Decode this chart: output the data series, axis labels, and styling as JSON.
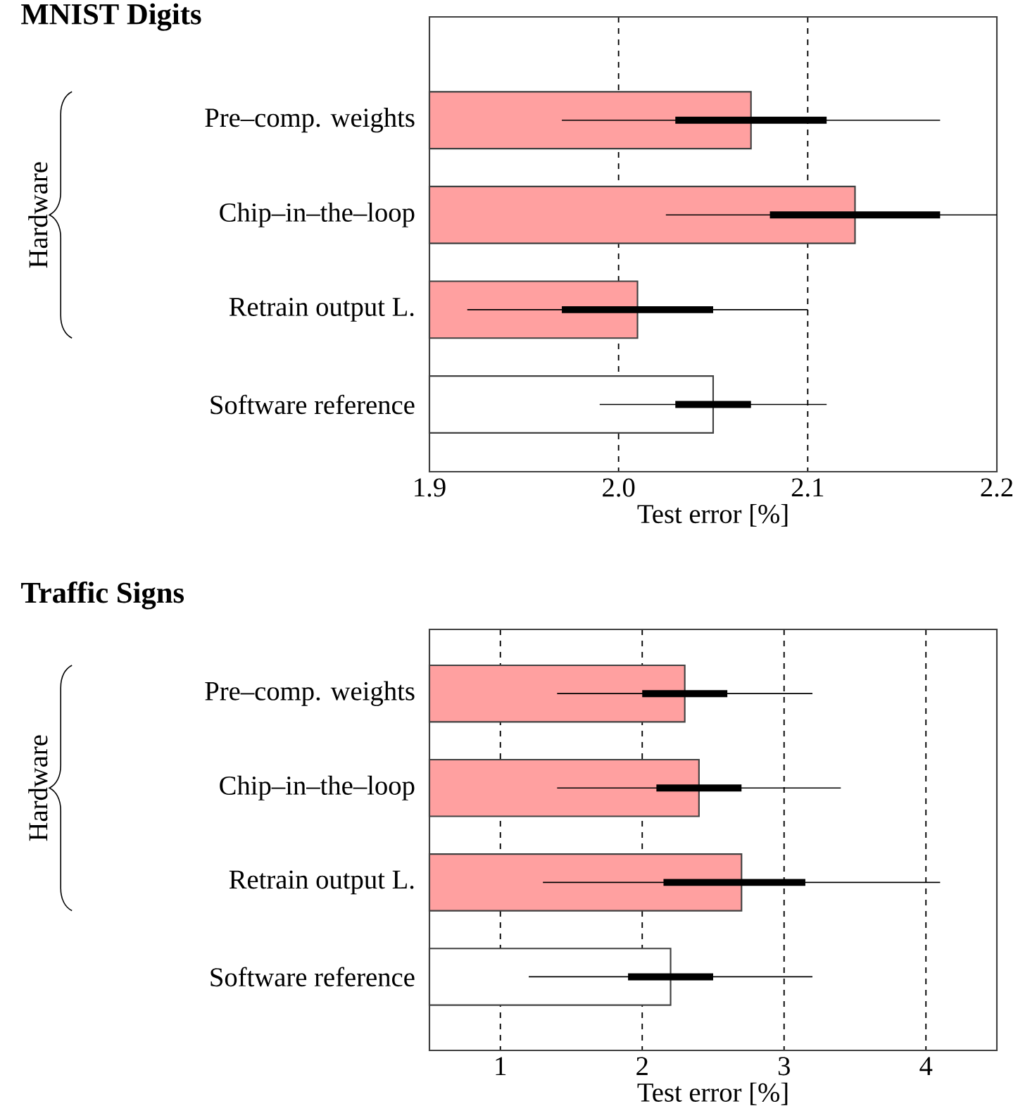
{
  "chart_data": [
    {
      "type": "bar",
      "orientation": "horizontal",
      "title": "MNIST Digits",
      "xlabel": "Test error [%]",
      "annotations": [
        "Hardware"
      ],
      "categories": [
        "Pre–comp. weights",
        "Chip–in–the–loop",
        "Retrain output L.",
        "Software reference"
      ],
      "series": [
        {
          "values": [
            2.07,
            2.125,
            2.01,
            2.05
          ],
          "colors": [
            "#ffa0a0",
            "#ffa0a0",
            "#ffa0a0",
            "#ffffff"
          ],
          "errors": [
            0.1,
            [
              2.025,
              2.2
            ],
            0.09,
            0.06
          ]
        },
        {
          "values": [
            0.08,
            0.09,
            0.08,
            0.04
          ],
          "base": [
            2.03,
            2.08,
            1.97,
            2.03
          ],
          "color": "#000000"
        }
      ],
      "grid": "x",
      "xlim": [
        1.9,
        2.2
      ],
      "xticks": [
        1.9,
        {
          "value": 2,
          "label": "2.0"
        },
        2.1,
        2.2
      ]
    },
    {
      "type": "bar",
      "orientation": "horizontal",
      "title": "Traffic Signs",
      "xlabel": "Test error [%]",
      "annotations": [
        "Hardware"
      ],
      "categories": [
        "Pre–comp. weights",
        "Chip–in–the–loop",
        "Retrain output L.",
        "Software reference"
      ],
      "series": [
        {
          "values": [
            2.3,
            2.4,
            2.7,
            2.2
          ],
          "colors": [
            "#ffa0a0",
            "#ffa0a0",
            "#ffa0a0",
            "#ffffff"
          ],
          "errors": [
            0.9,
            1.0,
            1.4,
            1.0
          ]
        },
        {
          "values": [
            0.6,
            0.6,
            1.0,
            0.6
          ],
          "base": [
            2.0,
            2.1,
            2.15,
            1.9
          ],
          "color": "#000000"
        }
      ],
      "grid": "x",
      "xlim": [
        0.5,
        4.5
      ],
      "xticks": [
        1,
        2,
        3,
        4
      ]
    }
  ]
}
